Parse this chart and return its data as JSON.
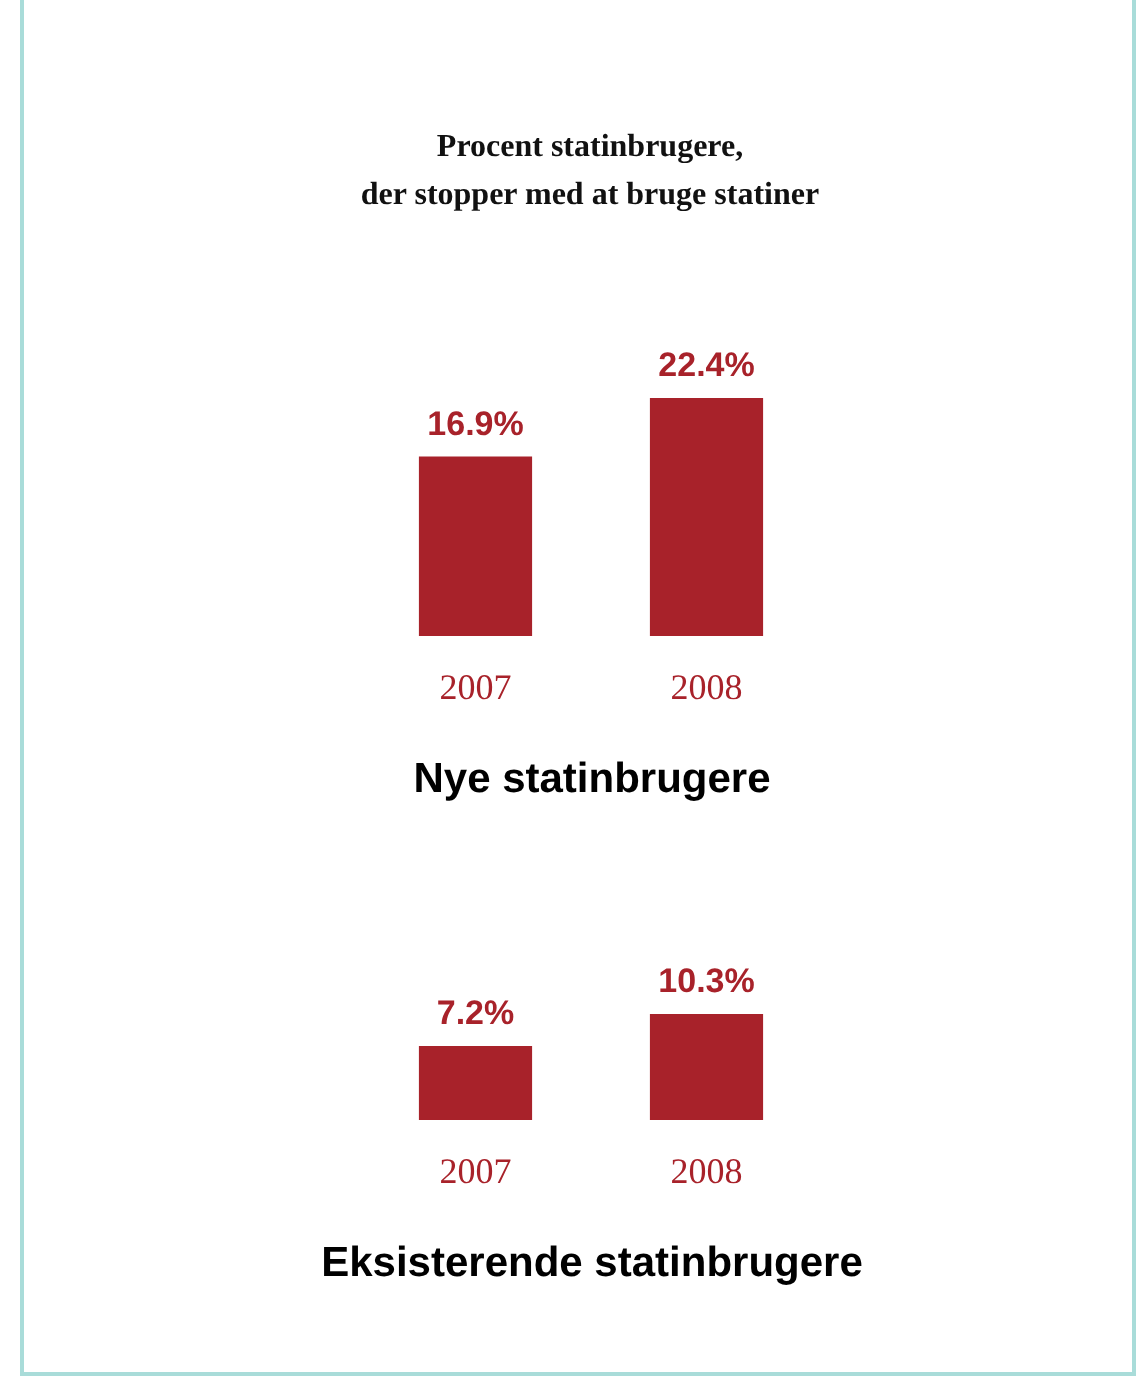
{
  "chart_data": [
    {
      "type": "bar",
      "title": "Procent statinbrugere,\nder stopper med at bruge statiner",
      "xlabel": "Nye statinbrugere",
      "categories": [
        "2007",
        "2008"
      ],
      "values": [
        16.9,
        22.4
      ],
      "value_labels": [
        "16.9%",
        "22.4%"
      ],
      "color": "#a8222a"
    },
    {
      "type": "bar",
      "xlabel": "Eksisterende statinbrugere",
      "categories": [
        "2007",
        "2008"
      ],
      "values": [
        7.2,
        10.3
      ],
      "value_labels": [
        "7.2%",
        "10.3%"
      ],
      "color": "#a8222a"
    }
  ]
}
